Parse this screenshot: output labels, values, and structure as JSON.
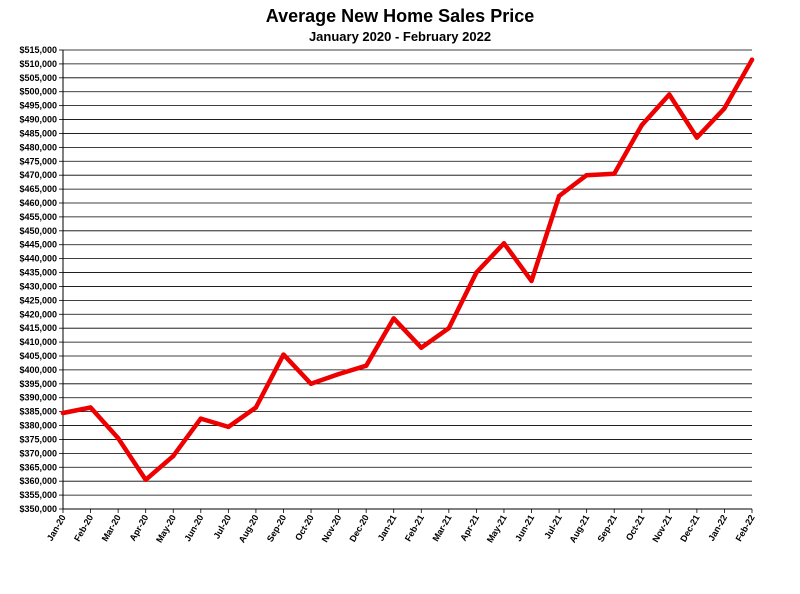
{
  "chart_data": {
    "type": "line",
    "title": "Average New Home Sales Price",
    "subtitle": "January 2020 - February 2022",
    "xlabel": "",
    "ylabel": "",
    "ylim": [
      350000,
      515000
    ],
    "ytick_step": 5000,
    "grid": true,
    "categories": [
      "Jan-20",
      "Feb-20",
      "Mar-20",
      "Apr-20",
      "May-20",
      "Jun-20",
      "Jul-20",
      "Aug-20",
      "Sep-20",
      "Oct-20",
      "Nov-20",
      "Dec-20",
      "Jan-21",
      "Feb-21",
      "Mar-21",
      "Apr-21",
      "May-21",
      "Jun-21",
      "Jul-21",
      "Aug-21",
      "Sep-21",
      "Oct-21",
      "Nov-21",
      "Dec-21",
      "Jan-22",
      "Feb-22"
    ],
    "series": [
      {
        "values": [
          384500,
          386500,
          375500,
          360500,
          369000,
          382500,
          379500,
          386500,
          405500,
          395000,
          398500,
          401500,
          418500,
          408000,
          415000,
          435000,
          445500,
          432000,
          462500,
          470000,
          470500,
          488000,
          499000,
          483500,
          494000,
          511500
        ]
      }
    ],
    "colors": {
      "line": "#ee0000",
      "grid": "#000000",
      "axis": "#000000"
    }
  }
}
